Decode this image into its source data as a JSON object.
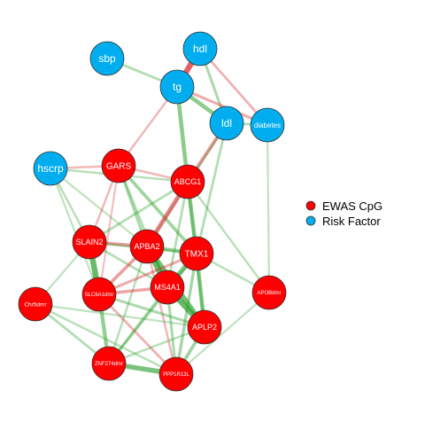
{
  "colors": {
    "ewas": "#ff0000",
    "risk": "#00aeef",
    "positive_edge": "#2ca02c",
    "negative_edge": "#d62728",
    "node_stroke": "#333333",
    "label": "#ffffff"
  },
  "legend": {
    "items": [
      {
        "label": "EWAS CpG",
        "type": "ewas"
      },
      {
        "label": "Risk Factor",
        "type": "risk"
      }
    ]
  },
  "network": {
    "nodes": [
      {
        "id": "sbp",
        "label": "sbp",
        "type": "risk"
      },
      {
        "id": "hdl",
        "label": "hdl",
        "type": "risk"
      },
      {
        "id": "tg",
        "label": "tg",
        "type": "risk"
      },
      {
        "id": "ldl",
        "label": "ldl",
        "type": "risk"
      },
      {
        "id": "diabetes",
        "label": "diabetes",
        "type": "risk"
      },
      {
        "id": "hscrp",
        "label": "hscrp",
        "type": "risk"
      },
      {
        "id": "GARS",
        "label": "GARS",
        "type": "ewas"
      },
      {
        "id": "ABCG1",
        "label": "ABCG1",
        "type": "ewas"
      },
      {
        "id": "SLAIN2",
        "label": "SLAIN2",
        "type": "ewas"
      },
      {
        "id": "APBA2",
        "label": "APBA2",
        "type": "ewas"
      },
      {
        "id": "TMX1",
        "label": "TMX1",
        "type": "ewas"
      },
      {
        "id": "MS4A1",
        "label": "MS4A1",
        "type": "ewas"
      },
      {
        "id": "SLC6A1dmr",
        "label": "SLC6A1dmr",
        "type": "ewas"
      },
      {
        "id": "Chr5dmr",
        "label": "Chr5dmr",
        "type": "ewas"
      },
      {
        "id": "APOBdmr",
        "label": "APOBdmr",
        "type": "ewas"
      },
      {
        "id": "APLP2",
        "label": "APLP2",
        "type": "ewas"
      },
      {
        "id": "ZNF274dmr",
        "label": "ZNF274dmr",
        "type": "ewas"
      },
      {
        "id": "PPP1R13L",
        "label": "PPP1R13L",
        "type": "ewas"
      }
    ],
    "edges": [
      {
        "source": "hdl",
        "target": "tg",
        "sign": "negative",
        "strength": 0.9
      },
      {
        "source": "sbp",
        "target": "tg",
        "sign": "positive",
        "strength": 0.3
      },
      {
        "source": "hdl",
        "target": "ldl",
        "sign": "positive",
        "strength": 0.35
      },
      {
        "source": "hdl",
        "target": "diabetes",
        "sign": "negative",
        "strength": 0.3
      },
      {
        "source": "tg",
        "target": "ldl",
        "sign": "positive",
        "strength": 0.6
      },
      {
        "source": "tg",
        "target": "diabetes",
        "sign": "negative",
        "strength": 0.35
      },
      {
        "source": "ldl",
        "target": "diabetes",
        "sign": "positive",
        "strength": 0.3
      },
      {
        "source": "tg",
        "target": "GARS",
        "sign": "negative",
        "strength": 0.25
      },
      {
        "source": "tg",
        "target": "ABCG1",
        "sign": "positive",
        "strength": 0.6
      },
      {
        "source": "ldl",
        "target": "ABCG1",
        "sign": "negative",
        "strength": 0.5
      },
      {
        "source": "ldl",
        "target": "TMX1",
        "sign": "positive",
        "strength": 0.3
      },
      {
        "source": "ldl",
        "target": "APBA2",
        "sign": "positive",
        "strength": 0.2
      },
      {
        "source": "diabetes",
        "target": "APOBdmr",
        "sign": "positive",
        "strength": 0.2
      },
      {
        "source": "hscrp",
        "target": "GARS",
        "sign": "negative",
        "strength": 0.25
      },
      {
        "source": "hscrp",
        "target": "ABCG1",
        "sign": "positive",
        "strength": 0.25
      },
      {
        "source": "hscrp",
        "target": "SLAIN2",
        "sign": "positive",
        "strength": 0.25
      },
      {
        "source": "hscrp",
        "target": "APBA2",
        "sign": "positive",
        "strength": 0.2
      },
      {
        "source": "hscrp",
        "target": "SLC6A1dmr",
        "sign": "positive",
        "strength": 0.2
      },
      {
        "source": "GARS",
        "target": "ABCG1",
        "sign": "negative",
        "strength": 0.25
      },
      {
        "source": "GARS",
        "target": "SLAIN2",
        "sign": "negative",
        "strength": 0.25
      },
      {
        "source": "GARS",
        "target": "APBA2",
        "sign": "positive",
        "strength": 0.35
      },
      {
        "source": "GARS",
        "target": "TMX1",
        "sign": "positive",
        "strength": 0.45
      },
      {
        "source": "GARS",
        "target": "MS4A1",
        "sign": "positive",
        "strength": 0.3
      },
      {
        "source": "GARS",
        "target": "SLC6A1dmr",
        "sign": "negative",
        "strength": 0.2
      },
      {
        "source": "ABCG1",
        "target": "APBA2",
        "sign": "negative",
        "strength": 0.65
      },
      {
        "source": "ABCG1",
        "target": "TMX1",
        "sign": "positive",
        "strength": 0.6
      },
      {
        "source": "ABCG1",
        "target": "SLAIN2",
        "sign": "positive",
        "strength": 0.3
      },
      {
        "source": "ABCG1",
        "target": "MS4A1",
        "sign": "positive",
        "strength": 0.3
      },
      {
        "source": "ABCG1",
        "target": "APLP2",
        "sign": "positive",
        "strength": 0.3
      },
      {
        "source": "ABCG1",
        "target": "APOBdmr",
        "sign": "positive",
        "strength": 0.25
      },
      {
        "source": "SLAIN2",
        "target": "APBA2",
        "sign": "negative",
        "strength": 0.45
      },
      {
        "source": "SLAIN2",
        "target": "SLC6A1dmr",
        "sign": "positive",
        "strength": 0.9
      },
      {
        "source": "SLAIN2",
        "target": "TMX1",
        "sign": "positive",
        "strength": 0.3
      },
      {
        "source": "SLAIN2",
        "target": "MS4A1",
        "sign": "positive",
        "strength": 0.3
      },
      {
        "source": "SLAIN2",
        "target": "Chr5dmr",
        "sign": "positive",
        "strength": 0.2
      },
      {
        "source": "APBA2",
        "target": "TMX1",
        "sign": "positive",
        "strength": 0.5
      },
      {
        "source": "APBA2",
        "target": "MS4A1",
        "sign": "positive",
        "strength": 0.9
      },
      {
        "source": "APBA2",
        "target": "SLC6A1dmr",
        "sign": "negative",
        "strength": 0.45
      },
      {
        "source": "APBA2",
        "target": "APLP2",
        "sign": "positive",
        "strength": 0.8
      },
      {
        "source": "APBA2",
        "target": "PPP1R13L",
        "sign": "negative",
        "strength": 0.25
      },
      {
        "source": "APBA2",
        "target": "ZNF274dmr",
        "sign": "positive",
        "strength": 0.25
      },
      {
        "source": "TMX1",
        "target": "MS4A1",
        "sign": "positive",
        "strength": 0.7
      },
      {
        "source": "TMX1",
        "target": "APLP2",
        "sign": "positive",
        "strength": 0.6
      },
      {
        "source": "TMX1",
        "target": "SLC6A1dmr",
        "sign": "negative",
        "strength": 0.35
      },
      {
        "source": "TMX1",
        "target": "PPP1R13L",
        "sign": "positive",
        "strength": 0.4
      },
      {
        "source": "TMX1",
        "target": "APOBdmr",
        "sign": "positive",
        "strength": 0.25
      },
      {
        "source": "TMX1",
        "target": "ZNF274dmr",
        "sign": "positive",
        "strength": 0.3
      },
      {
        "source": "MS4A1",
        "target": "SLC6A1dmr",
        "sign": "negative",
        "strength": 0.4
      },
      {
        "source": "MS4A1",
        "target": "APLP2",
        "sign": "positive",
        "strength": 0.9
      },
      {
        "source": "MS4A1",
        "target": "PPP1R13L",
        "sign": "positive",
        "strength": 0.35
      },
      {
        "source": "MS4A1",
        "target": "ZNF274dmr",
        "sign": "positive",
        "strength": 0.35
      },
      {
        "source": "SLC6A1dmr",
        "target": "ZNF274dmr",
        "sign": "positive",
        "strength": 0.55
      },
      {
        "source": "SLC6A1dmr",
        "target": "PPP1R13L",
        "sign": "negative",
        "strength": 0.3
      },
      {
        "source": "SLC6A1dmr",
        "target": "APLP2",
        "sign": "positive",
        "strength": 0.35
      },
      {
        "source": "Chr5dmr",
        "target": "ZNF274dmr",
        "sign": "positive",
        "strength": 0.3
      },
      {
        "source": "Chr5dmr",
        "target": "PPP1R13L",
        "sign": "positive",
        "strength": 0.25
      },
      {
        "source": "Chr5dmr",
        "target": "APLP2",
        "sign": "positive",
        "strength": 0.2
      },
      {
        "source": "ZNF274dmr",
        "target": "PPP1R13L",
        "sign": "positive",
        "strength": 0.75
      },
      {
        "source": "APLP2",
        "target": "PPP1R13L",
        "sign": "positive",
        "strength": 0.45
      },
      {
        "source": "APLP2",
        "target": "ZNF274dmr",
        "sign": "positive",
        "strength": 0.25
      },
      {
        "source": "APOBdmr",
        "target": "PPP1R13L",
        "sign": "positive",
        "strength": 0.2
      }
    ]
  }
}
